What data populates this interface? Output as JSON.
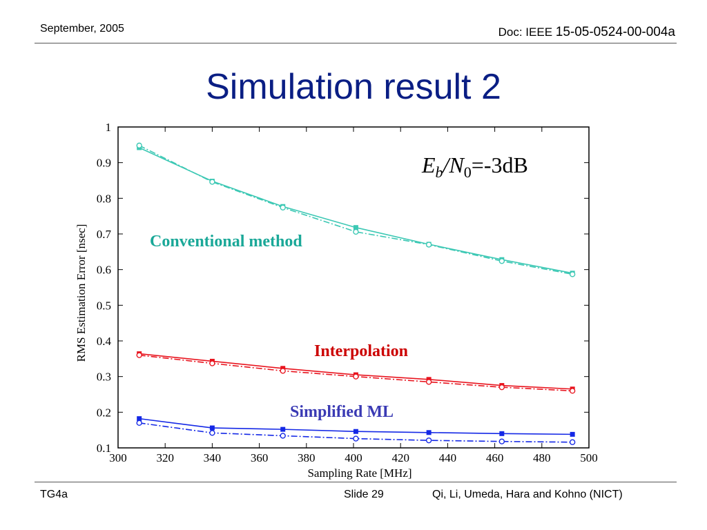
{
  "header": {
    "date": "September, 2005",
    "doc_prefix": "Doc: IEEE ",
    "doc_number": "15-05-0524-00-004a"
  },
  "slide_title": "Simulation result 2",
  "footer": {
    "left": "TG4a",
    "center": "Slide 29",
    "right": "Qi, Li, Umeda, Hara and Kohno (NICT)"
  },
  "chart_data": {
    "type": "line",
    "xlabel": "Sampling Rate [MHz]",
    "ylabel": "RMS Estimation Error [nsec]",
    "xlim": [
      300,
      500
    ],
    "ylim": [
      0.1,
      1.0
    ],
    "x_ticks": [
      300,
      320,
      340,
      360,
      380,
      400,
      420,
      440,
      460,
      480,
      500
    ],
    "y_ticks": [
      0.1,
      0.2,
      0.3,
      0.4,
      0.5,
      0.6,
      0.7,
      0.8,
      0.9,
      1.0
    ],
    "y_tick_labels": [
      "0.1",
      "0.2",
      "0.3",
      "0.4",
      "0.5",
      "0.6",
      "0.7",
      "0.8",
      "0.9",
      "1"
    ],
    "grid": false,
    "annotation": {
      "E": "E",
      "b": "b",
      "slash": "/N",
      "zero": "0",
      "value": "=-3dB"
    },
    "series": [
      {
        "label": "Conventional method",
        "color": "#3cc8b4",
        "style": "solid",
        "marker": "filled-square",
        "x": [
          309,
          340,
          370,
          401,
          432,
          463,
          493
        ],
        "y": [
          0.942,
          0.848,
          0.777,
          0.718,
          0.671,
          0.628,
          0.59
        ]
      },
      {
        "label": "Conventional method",
        "color": "#3cc8b4",
        "style": "dashdot",
        "marker": "open-circle",
        "x": [
          309,
          340,
          370,
          401,
          432,
          463,
          493
        ],
        "y": [
          0.948,
          0.846,
          0.774,
          0.706,
          0.67,
          0.624,
          0.587
        ]
      },
      {
        "label": "Interpolation",
        "color": "#e8141e",
        "style": "solid",
        "marker": "filled-square",
        "x": [
          309,
          340,
          370,
          401,
          432,
          463,
          493
        ],
        "y": [
          0.364,
          0.343,
          0.323,
          0.305,
          0.292,
          0.275,
          0.265
        ]
      },
      {
        "label": "Interpolation",
        "color": "#e8141e",
        "style": "dashdot",
        "marker": "open-circle",
        "x": [
          309,
          340,
          370,
          401,
          432,
          463,
          493
        ],
        "y": [
          0.36,
          0.337,
          0.316,
          0.3,
          0.285,
          0.27,
          0.26
        ]
      },
      {
        "label": "Simplified ML",
        "color": "#1428e6",
        "style": "solid",
        "marker": "filled-square",
        "x": [
          309,
          340,
          370,
          401,
          432,
          463,
          493
        ],
        "y": [
          0.182,
          0.156,
          0.152,
          0.146,
          0.143,
          0.14,
          0.138
        ]
      },
      {
        "label": "Simplified ML",
        "color": "#1428e6",
        "style": "dashdot",
        "marker": "open-circle",
        "x": [
          309,
          340,
          370,
          401,
          432,
          463,
          493
        ],
        "y": [
          0.17,
          0.142,
          0.134,
          0.126,
          0.121,
          0.118,
          0.116
        ]
      }
    ],
    "labels": [
      {
        "text": "Conventional method",
        "color": "#1aa898"
      },
      {
        "text": "Interpolation",
        "color": "#cc0000"
      },
      {
        "text": "Simplified ML",
        "color": "#3a3ab4"
      }
    ]
  }
}
